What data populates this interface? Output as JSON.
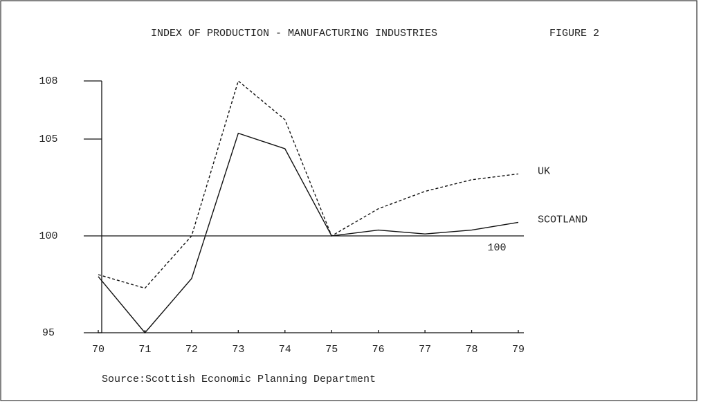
{
  "chart_data": {
    "type": "line",
    "title": "INDEX OF PRODUCTION - MANUFACTURING INDUSTRIES",
    "subtitle": "FIGURE 2",
    "source": "Source:Scottish Economic Planning Department",
    "categories": [
      "70",
      "71",
      "72",
      "73",
      "74",
      "75",
      "76",
      "77",
      "78",
      "79"
    ],
    "series": [
      {
        "name": "UK",
        "color": "#111111",
        "dashed": true,
        "values": [
          98,
          97.3,
          100,
          108,
          106,
          100,
          101.4,
          102.3,
          102.9,
          103.2
        ]
      },
      {
        "name": "SCOTLAND",
        "color": "#111111",
        "dashed": false,
        "values": [
          97.9,
          95,
          97.8,
          105.3,
          104.5,
          100,
          100.3,
          100.1,
          100.3,
          100.7
        ]
      }
    ],
    "reference_line": {
      "value": 100
    },
    "ylim": [
      95,
      108
    ],
    "yticks": [
      95,
      100,
      105,
      108
    ],
    "grid": false
  }
}
